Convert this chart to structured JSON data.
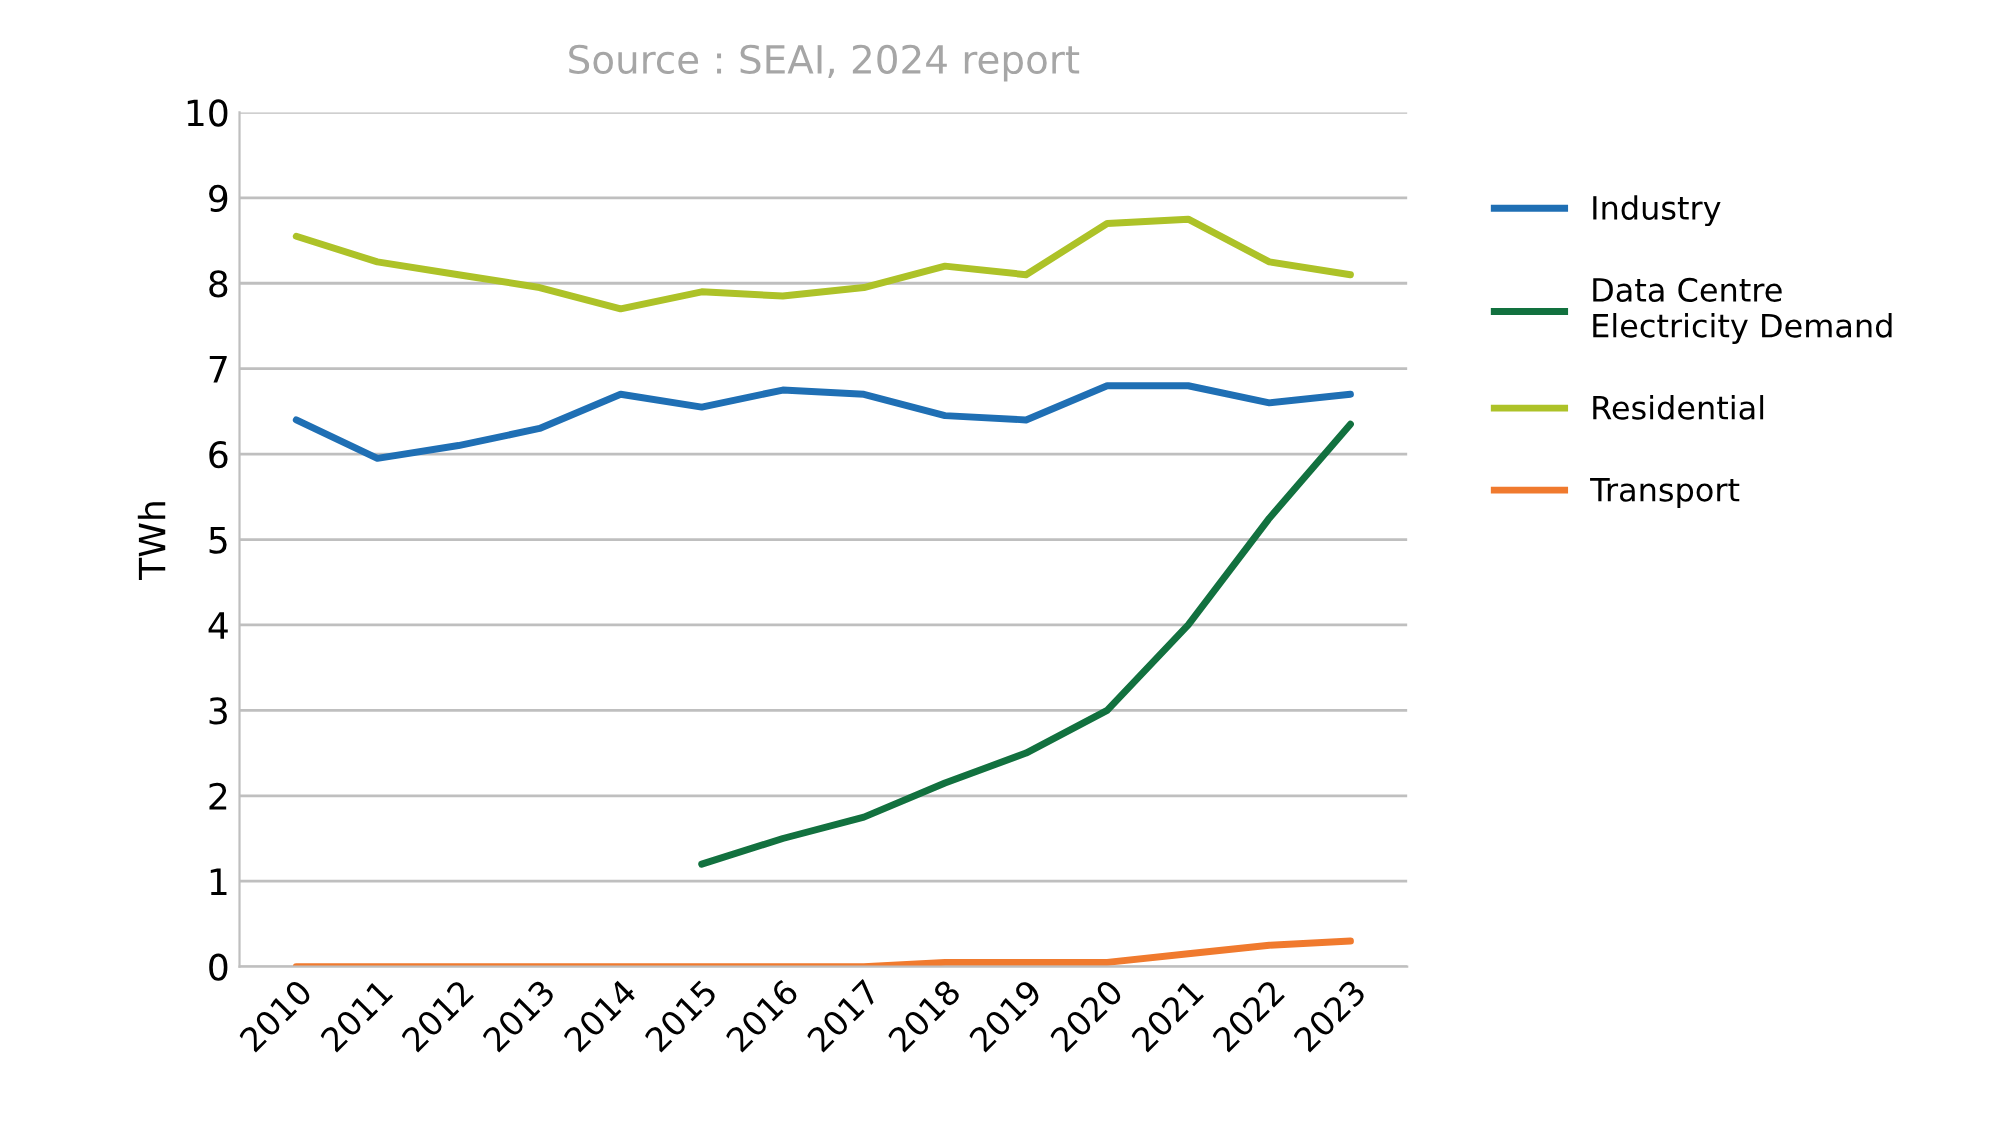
{
  "chart_data": {
    "type": "line",
    "title": "Source : SEAI, 2024 report",
    "ylabel": "TWh",
    "categories": [
      "2010",
      "2011",
      "2012",
      "2013",
      "2014",
      "2015",
      "2016",
      "2017",
      "2018",
      "2019",
      "2020",
      "2021",
      "2022",
      "2023"
    ],
    "series": [
      {
        "name": "Industry",
        "color": "#1f6fb4",
        "values": [
          6.4,
          5.95,
          6.1,
          6.3,
          6.7,
          6.55,
          6.75,
          6.7,
          6.45,
          6.4,
          6.8,
          6.8,
          6.6,
          6.7
        ]
      },
      {
        "name": "Data Centre Electricity Demand",
        "color": "#12713f",
        "values": [
          null,
          null,
          null,
          null,
          null,
          1.2,
          1.5,
          1.75,
          2.15,
          2.5,
          3.0,
          4.0,
          5.25,
          6.35
        ]
      },
      {
        "name": "Residential",
        "color": "#adc228",
        "values": [
          8.55,
          8.25,
          8.1,
          7.95,
          7.7,
          7.9,
          7.85,
          7.95,
          8.2,
          8.1,
          8.7,
          8.75,
          8.25,
          8.1
        ]
      },
      {
        "name": "Transport",
        "color": "#f07a2e",
        "values": [
          0,
          0,
          0,
          0,
          0,
          0,
          0,
          0,
          0.05,
          0.05,
          0.05,
          0.15,
          0.25,
          0.3
        ]
      }
    ],
    "ylim": [
      0,
      10
    ],
    "yticks": [
      0,
      1,
      2,
      3,
      4,
      5,
      6,
      7,
      8,
      9,
      10
    ],
    "grid": "y",
    "legend": "right",
    "marker": "none",
    "line_style": "solid"
  }
}
